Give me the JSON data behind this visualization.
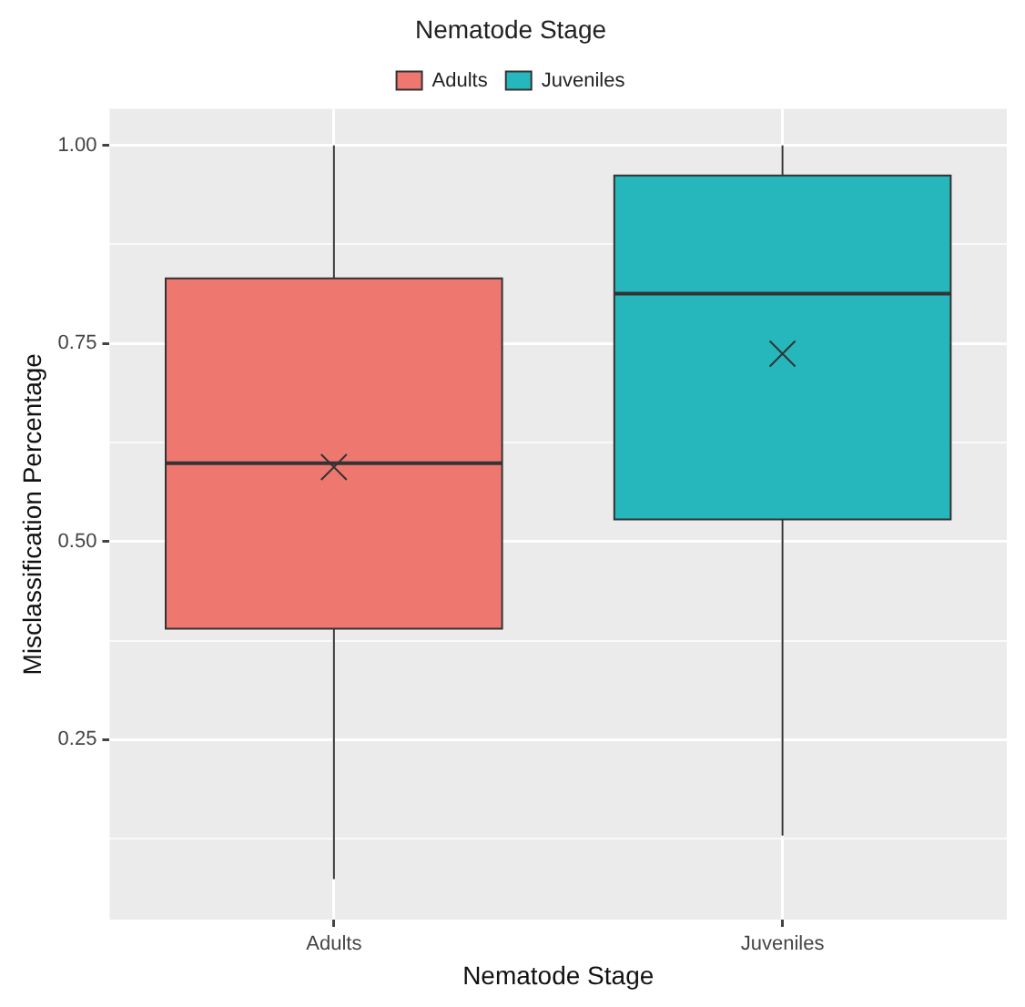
{
  "chart_data": {
    "type": "box",
    "xlabel": "Nematode Stage",
    "ylabel": "Misclassification Percentage",
    "legend_title": "Nematode Stage",
    "legend": "top",
    "categories": [
      "Adults",
      "Juveniles"
    ],
    "series": [
      {
        "name": "Adults",
        "color": "#ee7770",
        "boxes": [
          {
            "low": 0.074,
            "q1": 0.39,
            "median": 0.599,
            "q3": 0.832,
            "high": 1.0,
            "mean": 0.594
          },
          null
        ]
      },
      {
        "name": "Juveniles",
        "color": "#26b7bc",
        "boxes": [
          null,
          {
            "low": 0.129,
            "q1": 0.528,
            "median": 0.813,
            "q3": 0.962,
            "high": 1.0,
            "mean": 0.737
          }
        ]
      }
    ],
    "marker": "cross",
    "ylim": [
      0.023,
      1.046
    ],
    "yticks": [
      {
        "value": 0.125,
        "label": null
      },
      {
        "value": 0.25,
        "label": "0.25"
      },
      {
        "value": 0.375,
        "label": null
      },
      {
        "value": 0.5,
        "label": "0.50"
      },
      {
        "value": 0.625,
        "label": null
      },
      {
        "value": 0.75,
        "label": "0.75"
      },
      {
        "value": 0.875,
        "label": null
      },
      {
        "value": 1.0,
        "label": "1.00"
      }
    ],
    "grid": true
  }
}
